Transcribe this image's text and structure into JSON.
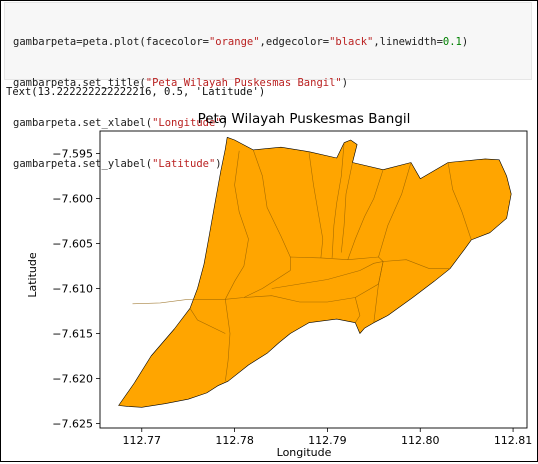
{
  "code_cell": {
    "lines": [
      [
        {
          "t": "gambarpeta=peta.plot(facecolor="
        },
        {
          "t": "\"orange\"",
          "c": "str"
        },
        {
          "t": ",edgecolor="
        },
        {
          "t": "\"black\"",
          "c": "str"
        },
        {
          "t": ",linewidth="
        },
        {
          "t": "0.1",
          "c": "num"
        },
        {
          "t": ")"
        }
      ],
      [
        {
          "t": "gambarpeta.set_title("
        },
        {
          "t": "\"Peta Wilayah Puskesmas Bangil\"",
          "c": "str"
        },
        {
          "t": ")"
        }
      ],
      [
        {
          "t": "gambarpeta.set_xlabel("
        },
        {
          "t": "\"Longitude\"",
          "c": "str"
        },
        {
          "t": ")"
        }
      ],
      [
        {
          "t": "gambarpeta.set_ylabel("
        },
        {
          "t": "\"Latitude\"",
          "c": "str"
        },
        {
          "t": ")"
        }
      ]
    ]
  },
  "output_text": "Text(13.222222222222216, 0.5, 'Latitude')",
  "chart_data": {
    "type": "map",
    "title": "Peta Wilayah Puskesmas Bangil",
    "xlabel": "Longitude",
    "ylabel": "Latitude",
    "xlim": [
      112.7655,
      112.8115
    ],
    "ylim": [
      -7.6255,
      -7.5925
    ],
    "xticks": [
      112.77,
      112.78,
      112.79,
      112.8,
      112.81
    ],
    "xtick_labels": [
      "112.77",
      "112.78",
      "112.79",
      "112.80",
      "112.81"
    ],
    "yticks": [
      -7.595,
      -7.6,
      -7.605,
      -7.61,
      -7.615,
      -7.62,
      -7.625
    ],
    "ytick_labels": [
      "−7.595",
      "−7.600",
      "−7.605",
      "−7.610",
      "−7.615",
      "−7.620",
      "−7.625"
    ],
    "grid": false,
    "facecolor": "#ffa500",
    "edgecolor": "#000000",
    "outline": [
      [
        112.7792,
        -7.5932
      ],
      [
        112.78,
        -7.5935
      ],
      [
        112.782,
        -7.5946
      ],
      [
        112.785,
        -7.5943
      ],
      [
        112.788,
        -7.5948
      ],
      [
        112.791,
        -7.5955
      ],
      [
        112.7918,
        -7.5938
      ],
      [
        112.7925,
        -7.5935
      ],
      [
        112.7932,
        -7.594
      ],
      [
        112.7927,
        -7.596
      ],
      [
        112.796,
        -7.5968
      ],
      [
        112.799,
        -7.596
      ],
      [
        112.8,
        -7.5978
      ],
      [
        112.803,
        -7.596
      ],
      [
        112.807,
        -7.5956
      ],
      [
        112.8085,
        -7.5957
      ],
      [
        112.8093,
        -7.5975
      ],
      [
        112.8098,
        -7.5995
      ],
      [
        112.8093,
        -7.6022
      ],
      [
        112.8075,
        -7.6038
      ],
      [
        112.8055,
        -7.6046
      ],
      [
        112.8048,
        -7.6056
      ],
      [
        112.8032,
        -7.6078
      ],
      [
        112.8015,
        -7.6092
      ],
      [
        112.7992,
        -7.611
      ],
      [
        112.7965,
        -7.613
      ],
      [
        112.795,
        -7.6138
      ],
      [
        112.794,
        -7.6144
      ],
      [
        112.7935,
        -7.615
      ],
      [
        112.793,
        -7.6138
      ],
      [
        112.791,
        -7.6134
      ],
      [
        112.788,
        -7.6138
      ],
      [
        112.786,
        -7.615
      ],
      [
        112.7848,
        -7.616
      ],
      [
        112.7835,
        -7.6172
      ],
      [
        112.7815,
        -7.6185
      ],
      [
        112.7793,
        -7.6203
      ],
      [
        112.7782,
        -7.6208
      ],
      [
        112.777,
        -7.6216
      ],
      [
        112.775,
        -7.6223
      ],
      [
        112.7725,
        -7.6228
      ],
      [
        112.77,
        -7.6232
      ],
      [
        112.7685,
        -7.6231
      ],
      [
        112.7675,
        -7.623
      ],
      [
        112.7692,
        -7.6205
      ],
      [
        112.771,
        -7.6175
      ],
      [
        112.7735,
        -7.6145
      ],
      [
        112.7752,
        -7.6122
      ],
      [
        112.776,
        -7.61
      ],
      [
        112.7767,
        -7.6073
      ],
      [
        112.7772,
        -7.6045
      ],
      [
        112.7778,
        -7.601
      ],
      [
        112.7785,
        -7.597
      ],
      [
        112.779,
        -7.5945
      ]
    ],
    "boundaries": [
      [
        [
          112.7805,
          -7.5947
        ],
        [
          112.78,
          -7.5985
        ],
        [
          112.7805,
          -7.6015
        ],
        [
          112.7815,
          -7.6045
        ],
        [
          112.781,
          -7.6075
        ],
        [
          112.78,
          -7.6092
        ],
        [
          112.779,
          -7.6112
        ]
      ],
      [
        [
          112.782,
          -7.5946
        ],
        [
          112.783,
          -7.5975
        ],
        [
          112.7835,
          -7.601
        ],
        [
          112.785,
          -7.6042
        ],
        [
          112.786,
          -7.6065
        ]
      ],
      [
        [
          112.788,
          -7.5948
        ],
        [
          112.7885,
          -7.5985
        ],
        [
          112.789,
          -7.6015
        ],
        [
          112.7895,
          -7.6045
        ],
        [
          112.7893,
          -7.6066
        ]
      ],
      [
        [
          112.7918,
          -7.5938
        ],
        [
          112.7915,
          -7.5975
        ],
        [
          112.791,
          -7.6005
        ],
        [
          112.7907,
          -7.603
        ],
        [
          112.7905,
          -7.6066
        ]
      ],
      [
        [
          112.7927,
          -7.596
        ],
        [
          112.792,
          -7.5995
        ],
        [
          112.7918,
          -7.603
        ],
        [
          112.7915,
          -7.606
        ]
      ],
      [
        [
          112.796,
          -7.5968
        ],
        [
          112.795,
          -7.6
        ],
        [
          112.794,
          -7.602
        ],
        [
          112.793,
          -7.6045
        ],
        [
          112.7922,
          -7.6068
        ]
      ],
      [
        [
          112.799,
          -7.596
        ],
        [
          112.798,
          -7.5995
        ],
        [
          112.7965,
          -7.603
        ],
        [
          112.7955,
          -7.6065
        ]
      ],
      [
        [
          112.769,
          -7.6117
        ],
        [
          112.772,
          -7.6116
        ],
        [
          112.775,
          -7.6112
        ],
        [
          112.779,
          -7.6112
        ],
        [
          112.781,
          -7.611
        ],
        [
          112.783,
          -7.61
        ],
        [
          112.786,
          -7.608
        ]
      ],
      [
        [
          112.786,
          -7.608
        ],
        [
          112.786,
          -7.6065
        ],
        [
          112.7893,
          -7.6066
        ],
        [
          112.7922,
          -7.6068
        ],
        [
          112.7955,
          -7.6065
        ],
        [
          112.796,
          -7.607
        ]
      ],
      [
        [
          112.784,
          -7.61
        ],
        [
          112.787,
          -7.6095
        ],
        [
          112.79,
          -7.609
        ],
        [
          112.7935,
          -7.608
        ],
        [
          112.795,
          -7.6072
        ],
        [
          112.796,
          -7.607
        ]
      ],
      [
        [
          112.781,
          -7.611
        ],
        [
          112.784,
          -7.6108
        ],
        [
          112.787,
          -7.6115
        ],
        [
          112.79,
          -7.6115
        ],
        [
          112.793,
          -7.611
        ],
        [
          112.7955,
          -7.6095
        ],
        [
          112.796,
          -7.607
        ]
      ],
      [
        [
          112.793,
          -7.611
        ],
        [
          112.7935,
          -7.613
        ],
        [
          112.793,
          -7.6138
        ]
      ],
      [
        [
          112.796,
          -7.607
        ],
        [
          112.7985,
          -7.6068
        ],
        [
          112.801,
          -7.6078
        ],
        [
          112.8032,
          -7.6078
        ]
      ],
      [
        [
          112.796,
          -7.607
        ],
        [
          112.7955,
          -7.6095
        ],
        [
          112.795,
          -7.6138
        ]
      ],
      [
        [
          112.803,
          -7.596
        ],
        [
          112.8035,
          -7.599
        ],
        [
          112.8045,
          -7.6015
        ],
        [
          112.8055,
          -7.6046
        ]
      ],
      [
        [
          112.779,
          -7.6112
        ],
        [
          112.7795,
          -7.615
        ],
        [
          112.7793,
          -7.618
        ],
        [
          112.779,
          -7.6203
        ]
      ],
      [
        [
          112.7752,
          -7.6122
        ],
        [
          112.776,
          -7.6135
        ],
        [
          112.779,
          -7.615
        ]
      ]
    ]
  }
}
